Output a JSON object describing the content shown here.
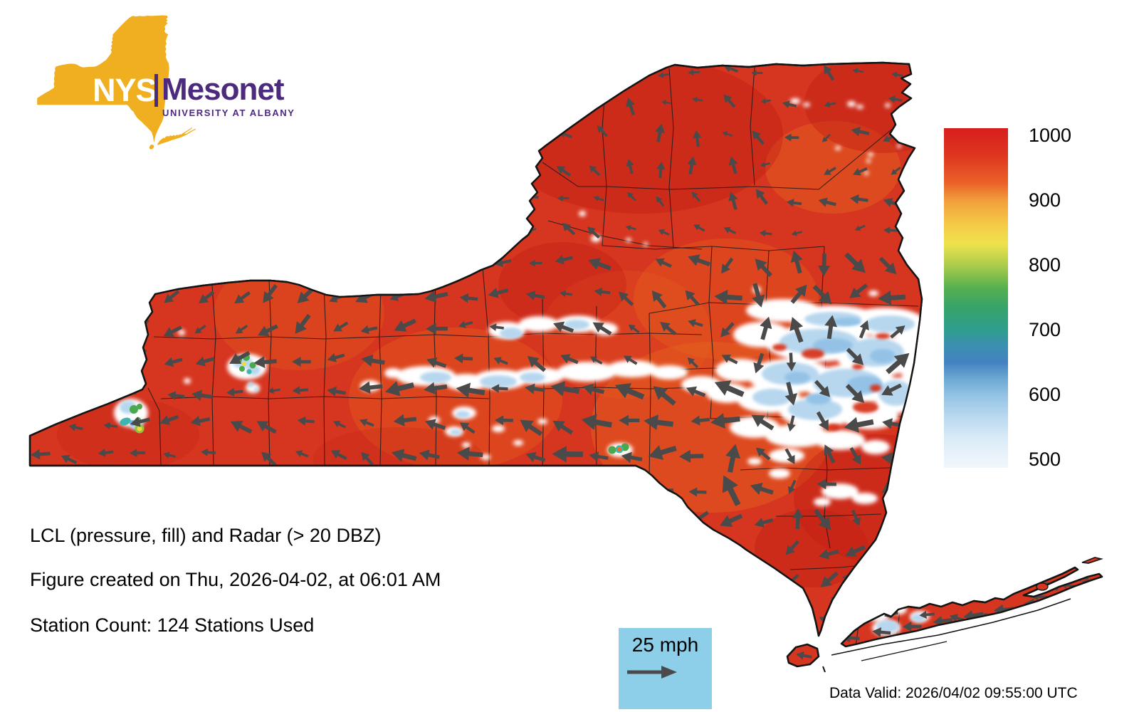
{
  "logo": {
    "nys": "NYS",
    "mesonet": "Mesonet",
    "university": "UNIVERSITY AT ALBANY",
    "gold": "#EFAF21",
    "purple": "#4C2A7D"
  },
  "titles": {
    "line1": "LCL (pressure, fill) and Radar (> 20 DBZ)",
    "line2": "Figure created on Thu, 2026-04-02, at 06:01 AM",
    "line3": "Station Count: 124 Stations Used"
  },
  "colorbar": {
    "ticks": [
      "1000",
      "900",
      "800",
      "700",
      "600",
      "500"
    ],
    "stops": [
      [
        "0",
        "#D71F1E"
      ],
      [
        "8",
        "#DE3620"
      ],
      [
        "16",
        "#EA6128"
      ],
      [
        "21.5",
        "#F2A03C"
      ],
      [
        "28",
        "#F4C846"
      ],
      [
        "34",
        "#EFE24C"
      ],
      [
        "40.5",
        "#A9CC4B"
      ],
      [
        "47",
        "#55B04E"
      ],
      [
        "53",
        "#36A36B"
      ],
      [
        "59.5",
        "#2F9E8E"
      ],
      [
        "64",
        "#3B8FB0"
      ],
      [
        "69",
        "#4382C0"
      ],
      [
        "73.5",
        "#69A6D2"
      ],
      [
        "78.5",
        "#92C2E4"
      ],
      [
        "85",
        "#B9D9EF"
      ],
      [
        "91",
        "#D8EAF7"
      ],
      [
        "97.5",
        "#EBF4FB"
      ],
      [
        "100",
        "#F0F7FC"
      ]
    ]
  },
  "wind_legend": {
    "label": "25 mph",
    "box_color": "#8DCEE9",
    "arrow_color": "#4A4A4A"
  },
  "footer": {
    "data_valid": "Data Valid: 2026/04/02 09:55:00 UTC"
  },
  "map": {
    "base_fill": "#D6351F",
    "arrow_color": "#4A4A4A",
    "border_color": "#141414",
    "radar_white": "#FFFFFF",
    "radar_blue": "#B7D7EF"
  }
}
